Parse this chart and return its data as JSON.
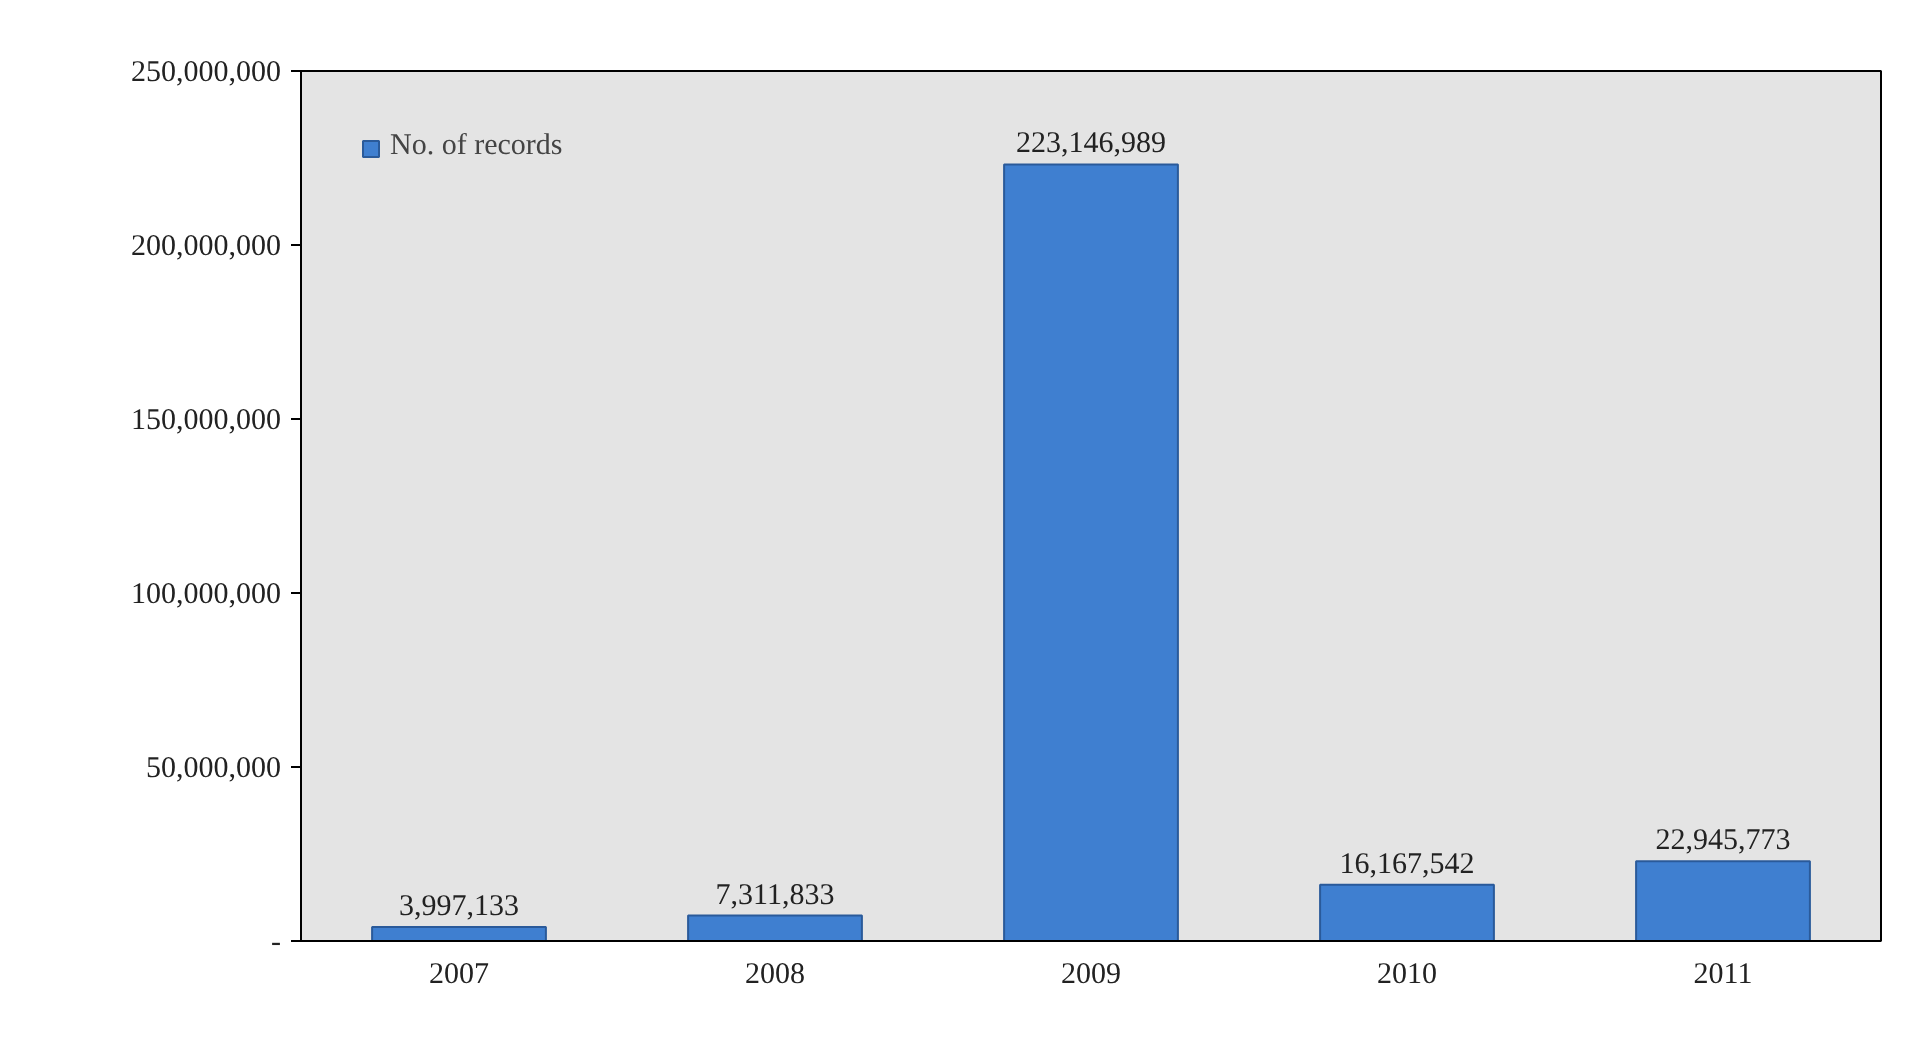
{
  "chart_data": {
    "type": "bar",
    "categories": [
      "2007",
      "2008",
      "2009",
      "2010",
      "2011"
    ],
    "series": [
      {
        "name": "No. of records",
        "color": "#3f7fd0",
        "values": [
          3997133,
          7311833,
          223146989,
          16167542,
          22945773
        ],
        "value_labels": [
          "3,997,133",
          "7,311,833",
          "223,146,989",
          "16,167,542",
          "22,945,773"
        ]
      }
    ],
    "ylim": [
      0,
      250000000
    ],
    "yticks": [
      {
        "value": 0,
        "label": "-"
      },
      {
        "value": 50000000,
        "label": "50,000,000"
      },
      {
        "value": 100000000,
        "label": "100,000,000"
      },
      {
        "value": 150000000,
        "label": "150,000,000"
      },
      {
        "value": 200000000,
        "label": "200,000,000"
      },
      {
        "value": 250000000,
        "label": "250,000,000"
      }
    ],
    "legend": "top left",
    "grid": false
  }
}
